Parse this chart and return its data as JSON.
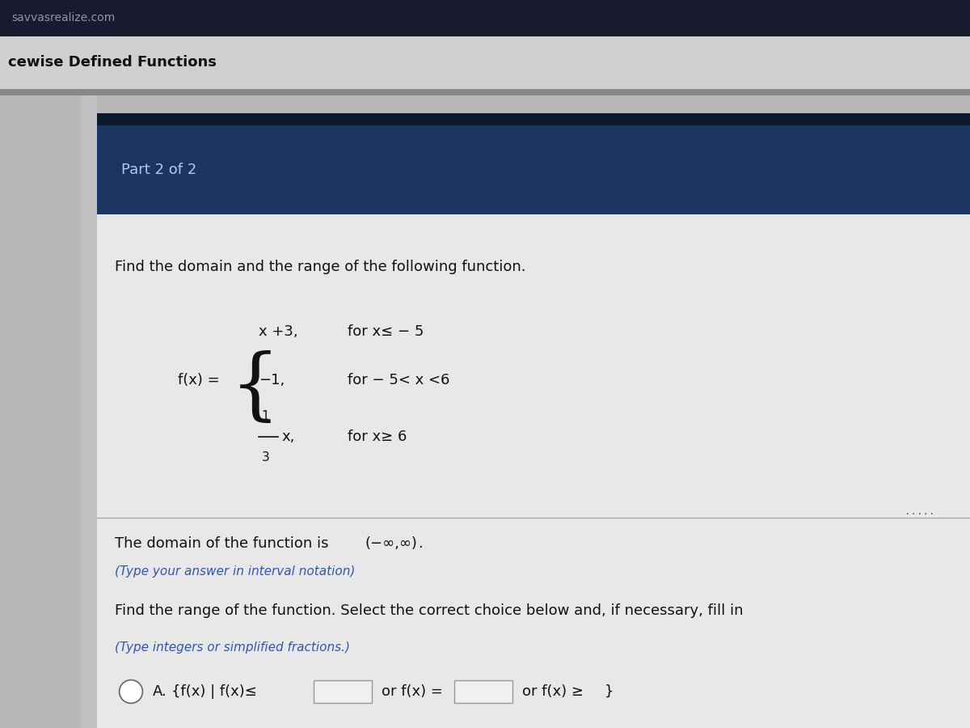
{
  "bg_top_bar_color": "#1a1a2e",
  "bg_top_bar_text": "savvasrealize.com",
  "bg_top_bar_text_color": "#8899aa",
  "bg_header_color": "#d0d0d0",
  "header_text": "cewise Defined Functions",
  "header_text_color": "#111111",
  "part_bar_color": "#1a3560",
  "part_bar_text": "Part 2 of 2",
  "part_bar_text_color": "#aaccee",
  "main_bg_color": "#b8b8b8",
  "content_bg_color": "#e8e8e8",
  "sidebar_color": "#c0c0c0",
  "question_text": "Find the domain and the range of the following function.",
  "question_text_color": "#111111",
  "function_label": "f(x) =",
  "piece1_expr": "x +3,  for x≤ − 5",
  "piece2_expr": "−1,    for − 5< x <6",
  "piece3_num": "1",
  "piece3_den": "3",
  "piece3_var": "x,",
  "piece3_cond": "for x≥ 6",
  "domain_text": "The domain of the function is",
  "domain_value": "(−∞,∞)",
  "domain_period": ".",
  "domain_hint": "(Type your answer in interval notation)",
  "range_question": "Find the range of the function. Select the correct choice below and, if necessary, fill in",
  "range_hint": "(Type integers or simplified fractions.)",
  "choice_a_text1": "{f(x) | f(x)≤",
  "choice_a_or1": "or f(x) =",
  "choice_a_or2": "or f(x) ≥",
  "choice_a_close": "}",
  "hint_color": "#3355aa",
  "dots_color": "#555566",
  "line_color": "#aaaaaa",
  "input_bg": "#f0f0f0",
  "input_border": "#999999"
}
